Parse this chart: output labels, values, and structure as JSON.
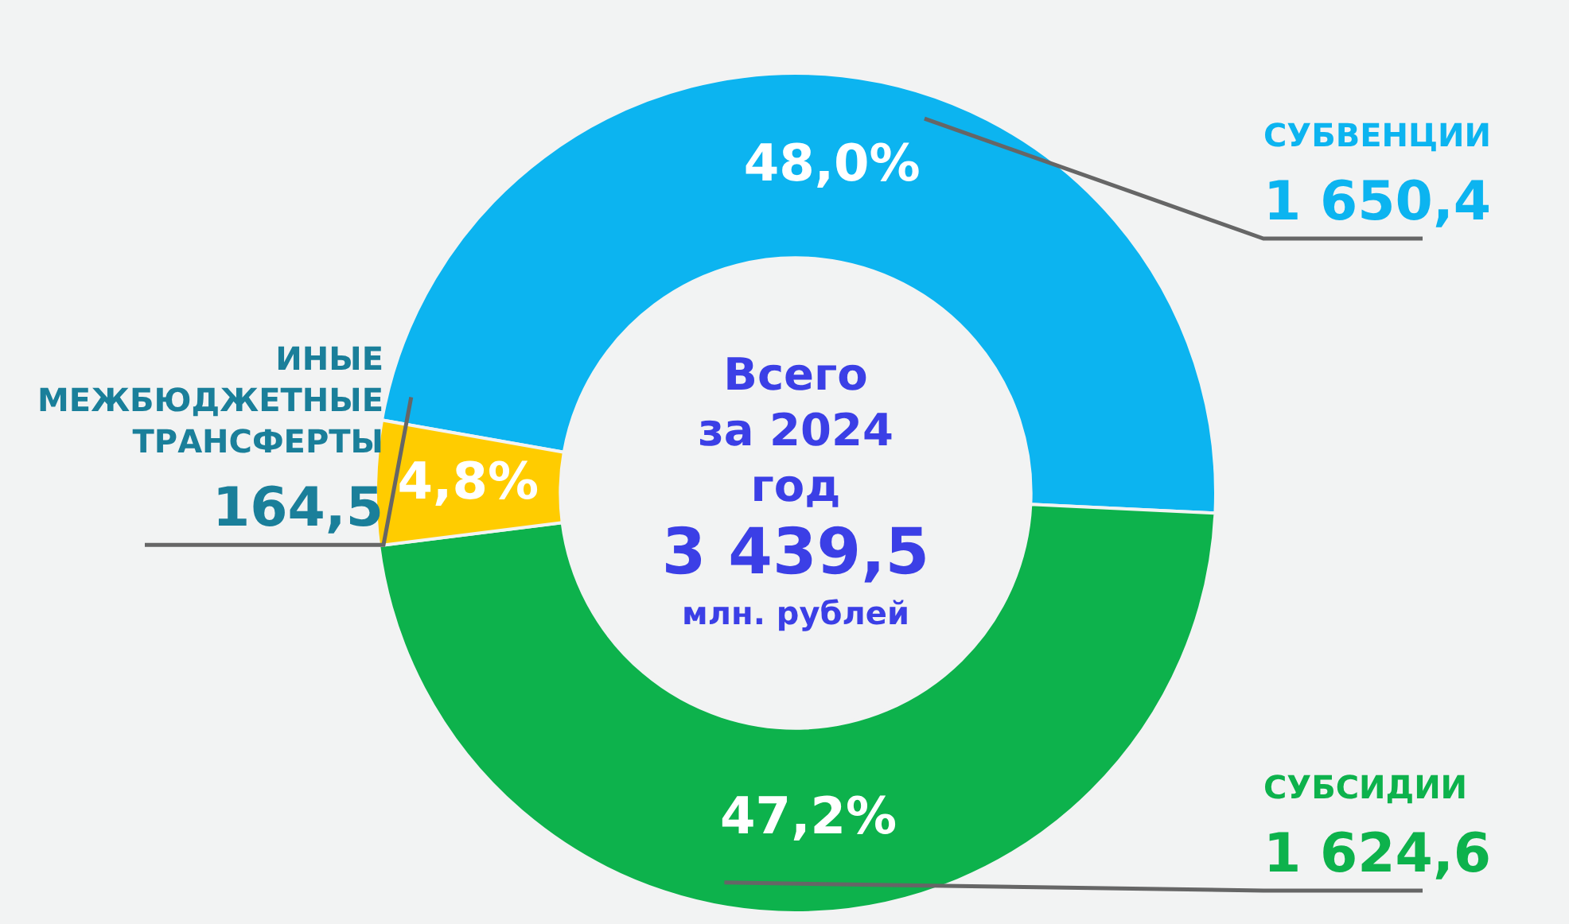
{
  "chart_data": {
    "type": "donut",
    "categories": [
      "СУБВЕНЦИИ",
      "СУБСИДИИ",
      "ИНЫЕ МЕЖБЮДЖЕТНЫЕ ТРАНСФЕРТЫ"
    ],
    "values": [
      1650.4,
      1624.6,
      164.5
    ],
    "colors": [
      "#0cb4f0",
      "#0db24c",
      "#ffcc00"
    ],
    "value_labels": [
      "1 650,4",
      "1 624,6",
      "164,5"
    ],
    "annotations": [
      "Всего",
      "за 2024",
      "год",
      "3 439,5",
      "млн. рублей",
      {
        "text": "48,0%",
        "x": "СУБВЕНЦИИ"
      },
      {
        "text": "47,2%",
        "x": "СУБСИДИИ"
      },
      {
        "text": "4,8%",
        "x": "ИНЫЕ МЕЖБЮДЖЕТНЫЕ ТРАНСФЕРТЫ"
      }
    ],
    "legend": false
  }
}
